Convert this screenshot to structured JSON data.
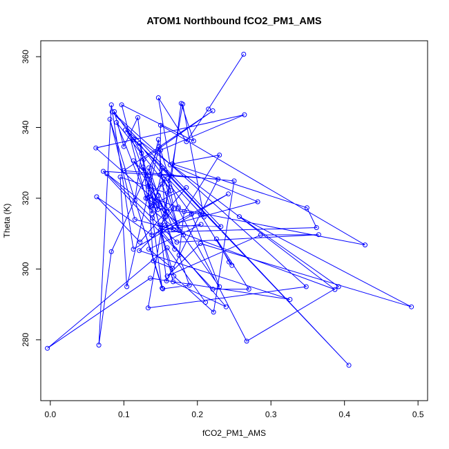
{
  "chart_data": {
    "type": "scatter",
    "title": "ATOM1 Northbound fCO2_PM1_AMS",
    "xlabel": "fCO2_PM1_AMS",
    "ylabel": "Theta (K)",
    "xlim": [
      -0.013,
      0.513
    ],
    "ylim": [
      262.8,
      364.5
    ],
    "xticks": [
      0.0,
      0.1,
      0.2,
      0.3,
      0.4,
      0.5
    ],
    "xtick_labels": [
      "0.0",
      "0.1",
      "0.2",
      "0.3",
      "0.4",
      "0.5"
    ],
    "yticks": [
      280,
      300,
      320,
      340,
      360
    ],
    "ytick_labels": [
      "280",
      "300",
      "320",
      "340",
      "360"
    ],
    "grid": false,
    "legend": "none",
    "connected": true,
    "color": "#0000ff",
    "series": [
      {
        "x": [
          0.263,
          0.215,
          0.185,
          0.147,
          0.163,
          0.282,
          0.173,
          0.132,
          0.119,
          0.1,
          0.087,
          0.113,
          0.165,
          0.178,
          0.195,
          0.097,
          0.13,
          0.152,
          0.175,
          0.155,
          0.137,
          0.185,
          0.122,
          0.063,
          0.138,
          0.242,
          0.113,
          0.083,
          0.066,
          0.083,
          0.148,
          0.104,
          0.095,
          0.159,
          0.157,
          0.147,
          0.133,
          0.23,
          0.192,
          0.121,
          0.167,
          0.239,
          0.15,
          0.205,
          0.134,
          0.166,
          0.14,
          0.134,
          0.174,
          0.15,
          0.264,
          0.062,
          0.149,
          0.139,
          0.152,
          0.081,
          0.115,
          0.167,
          0.158,
          0.113,
          0.133,
          0.169,
          0.147,
          0.134,
          0.146,
          0.108,
          0.124,
          0.115,
          0.153,
          0.189,
          0.175,
          0.182,
          0.23,
          0.166,
          0.349,
          0.362,
          0.15,
          0.158,
          0.228,
          0.072,
          0.221,
          0.27,
          0.226,
          0.243,
          0.247,
          0.204,
          0.136,
          0.09,
          0.164,
          0.149,
          0.15,
          0.428,
          0.174,
          0.267,
          0.392,
          0.257,
          0.491,
          0.204,
          0.159,
          0.286,
          0.365,
          0.172,
          0.077,
          0.181,
          0.126,
          0.168,
          0.222,
          0.25,
          0.1,
          0.221,
          0.127,
          0.138,
          0.153,
          0.406,
          0.102,
          0.387,
          0.149,
          0.168,
          0.16,
          0.209,
          0.18,
          0.133,
          0.348,
          0.084,
          0.232,
          0.156,
          0.121,
          0.326,
          0.136,
          -0.004,
          0.159,
          0.211
        ],
        "y": [
          360.7,
          345.2,
          336.0,
          348.4,
          329.4,
          319.0,
          313.0,
          320.0,
          342.8,
          334.6,
          344.5,
          336.6,
          326.3,
          346.8,
          336.2,
          346.4,
          320.0,
          324.0,
          310.9,
          325.4,
          318.0,
          323.0,
          307.6,
          320.4,
          309.6,
          321.2,
          305.6,
          346.4,
          278.5,
          304.9,
          334.6,
          295.0,
          326.0,
          321.4,
          314.7,
          336.6,
          323.4,
          295.0,
          315.5,
          335.5,
          296.4,
          289.3,
          311.0,
          312.6,
          305.6,
          300.2,
          302.3,
          320.3,
          317.5,
          333.6,
          343.6,
          334.2,
          318.3,
          314.4,
          294.6,
          342.3,
          314.0,
          311.2,
          316.2,
          330.6,
          326.3,
          305.6,
          320.8,
          328.6,
          316.8,
          338.4,
          332.7,
          319.4,
          294.4,
          295.4,
          303.9,
          316.2,
          332.2,
          329.7,
          317.3,
          311.7,
          310.4,
          296.6,
          325.4,
          327.6,
          294.3,
          294.3,
          308.5,
          302.0,
          301.0,
          315.5,
          317.5,
          341.4,
          322.2,
          326.6,
          340.6,
          306.8,
          317.0,
          279.6,
          295.0,
          314.8,
          289.3,
          307.2,
          298.0,
          309.6,
          309.7,
          307.6,
          326.9,
          309.6,
          328.8,
          298.0,
          287.8,
          324.9,
          327.8,
          344.7,
          331.0,
          315.6,
          328.5,
          272.8,
          339.3,
          294.2,
          312.4,
          317.0,
          325.6,
          314.7,
          346.6,
          289.0,
          295.0,
          344.4,
          312.0,
          312.4,
          305.2,
          291.4,
          297.4,
          277.6,
          306.0,
          290.6
        ]
      }
    ]
  }
}
